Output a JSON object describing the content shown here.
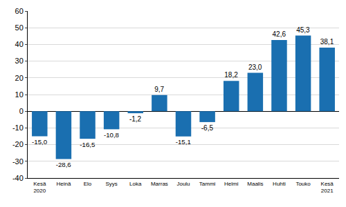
{
  "chart_data": {
    "type": "bar",
    "categories": [
      "Kesä 2020",
      "Heinä",
      "Elo",
      "Syys",
      "Loka",
      "Marras",
      "Joulu",
      "Tammi",
      "Helmi",
      "Maalis",
      "Huhti",
      "Touko",
      "Kesä 2021"
    ],
    "values": [
      -15.0,
      -28.6,
      -16.5,
      -10.8,
      -1.2,
      9.7,
      -15.1,
      -6.5,
      18.2,
      23.0,
      42.6,
      45.3,
      38.1
    ],
    "value_labels": [
      "-15,0",
      "-28,6",
      "-16,5",
      "-10,8",
      "-1,2",
      "9,7",
      "-15,1",
      "-6,5",
      "18,2",
      "23,0",
      "42,6",
      "45,3",
      "38,1"
    ],
    "color": "#1a6fb0",
    "ylim": [
      -40,
      60
    ],
    "yticks": [
      -40,
      -30,
      -20,
      -10,
      0,
      10,
      20,
      30,
      40,
      50,
      60
    ],
    "grid": true,
    "data_labels": true
  }
}
